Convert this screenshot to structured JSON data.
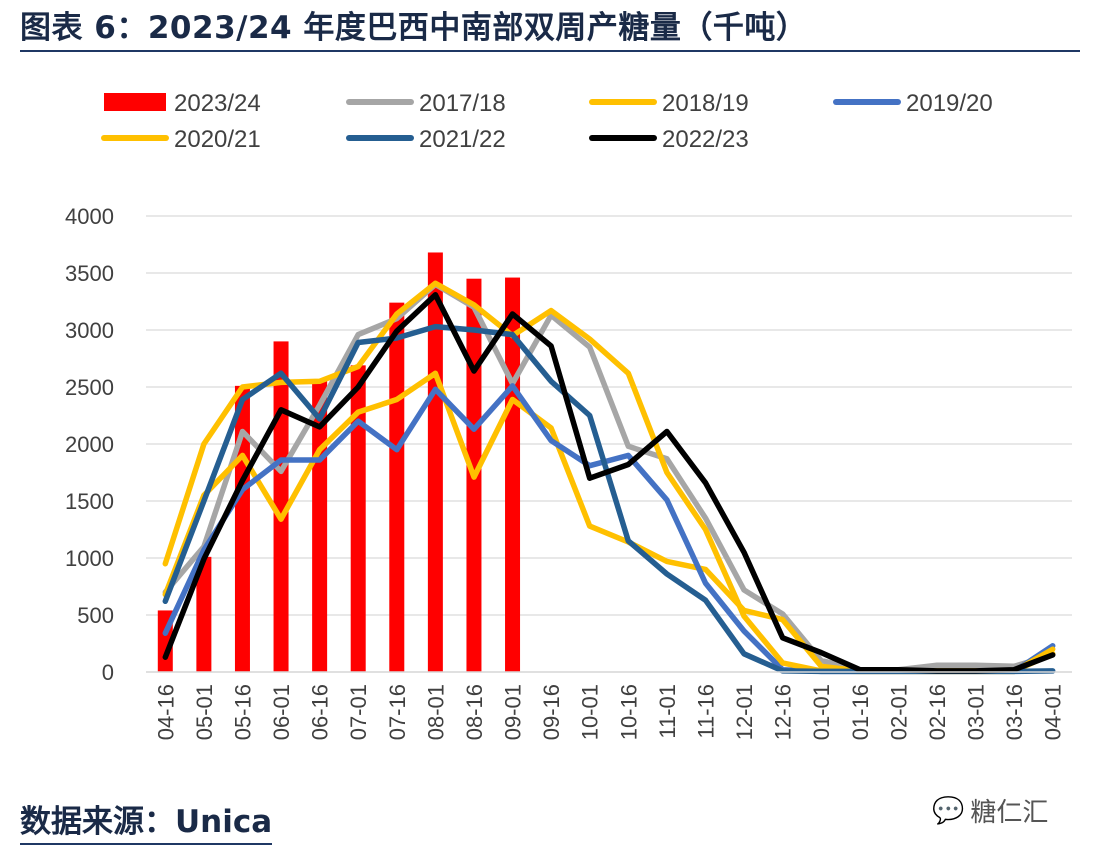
{
  "title": "图表 6：2023/24 年度巴西中南部双周产糖量（千吨）",
  "source": "数据来源：Unica",
  "watermark": {
    "icon": "wechat-icon",
    "text": "糖仁汇"
  },
  "chart_data": {
    "type": "bar+line",
    "ylim": [
      0,
      4000
    ],
    "yticks": [
      0,
      500,
      1000,
      1500,
      2000,
      2500,
      3000,
      3500,
      4000
    ],
    "grid": true,
    "legend_position": "top",
    "categories": [
      "04-16",
      "05-01",
      "05-16",
      "06-01",
      "06-16",
      "07-01",
      "07-16",
      "08-01",
      "08-16",
      "09-01",
      "09-16",
      "10-01",
      "10-16",
      "11-01",
      "11-16",
      "12-01",
      "12-16",
      "01-01",
      "01-16",
      "02-01",
      "02-16",
      "03-01",
      "03-16",
      "04-01"
    ],
    "bar_series": {
      "name": "2023/24",
      "color": "#ff0000",
      "values": [
        540,
        1010,
        2510,
        2900,
        2560,
        2690,
        3240,
        3680,
        3450,
        3460
      ]
    },
    "line_series": [
      {
        "name": "2017/18",
        "color": "#a6a6a6",
        "values": [
          700,
          1100,
          2110,
          1760,
          2340,
          2960,
          3100,
          3400,
          3200,
          2530,
          3130,
          2850,
          1980,
          1870,
          1350,
          720,
          510,
          100,
          20,
          20,
          60,
          60,
          50,
          150
        ]
      },
      {
        "name": "2018/19",
        "color": "#ffc000",
        "values": [
          680,
          1550,
          1900,
          1340,
          1950,
          2280,
          2390,
          2620,
          1710,
          2390,
          2140,
          1280,
          1140,
          970,
          900,
          540,
          460,
          50,
          10,
          10,
          10,
          10,
          10,
          160
        ]
      },
      {
        "name": "2019/20",
        "color": "#4472c4",
        "values": [
          340,
          1070,
          1600,
          1860,
          1860,
          2200,
          1950,
          2480,
          2130,
          2510,
          2030,
          1810,
          1900,
          1510,
          780,
          360,
          20,
          5,
          5,
          5,
          5,
          5,
          5,
          230
        ]
      },
      {
        "name": "2020/21",
        "color": "#ffc000",
        "values": [
          950,
          2000,
          2500,
          2540,
          2550,
          2680,
          3140,
          3410,
          3220,
          2950,
          3170,
          2920,
          2620,
          1750,
          1250,
          490,
          80,
          10,
          5,
          5,
          5,
          5,
          5,
          200
        ]
      },
      {
        "name": "2021/22",
        "color": "#255e91",
        "values": [
          620,
          1500,
          2390,
          2620,
          2220,
          2890,
          2930,
          3030,
          3000,
          2960,
          2550,
          2250,
          1150,
          860,
          630,
          160,
          10,
          5,
          5,
          5,
          5,
          5,
          5,
          10
        ]
      },
      {
        "name": "2022/23",
        "color": "#000000",
        "values": [
          130,
          990,
          1680,
          2300,
          2150,
          2500,
          2990,
          3310,
          2640,
          3140,
          2860,
          1700,
          1820,
          2110,
          1660,
          1050,
          300,
          170,
          20,
          20,
          10,
          10,
          20,
          150
        ]
      }
    ]
  }
}
